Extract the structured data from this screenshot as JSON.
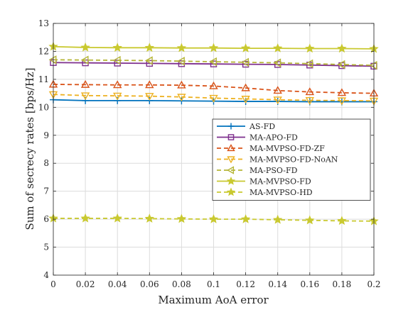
{
  "chart_data": {
    "type": "line",
    "title": "",
    "xlabel": "Maximum AoA error",
    "ylabel": "Sum of secrecy rates [bps/Hz]",
    "xlim": [
      0,
      0.2
    ],
    "ylim": [
      4,
      13
    ],
    "xticks": [
      0,
      0.02,
      0.04,
      0.06,
      0.08,
      0.1,
      0.12,
      0.14,
      0.16,
      0.18,
      0.2
    ],
    "yticks": [
      4,
      5,
      6,
      7,
      8,
      9,
      10,
      11,
      12,
      13
    ],
    "xtick_labels": [
      "0",
      "0.02",
      "0.04",
      "0.06",
      "0.08",
      "0.1",
      "0.12",
      "0.14",
      "0.16",
      "0.18",
      "0.2"
    ],
    "ytick_labels": [
      "4",
      "5",
      "6",
      "7",
      "8",
      "9",
      "10",
      "11",
      "12",
      "13"
    ],
    "grid": true,
    "legend_position": "center-right",
    "x": [
      0,
      0.02,
      0.04,
      0.06,
      0.08,
      0.1,
      0.12,
      0.14,
      0.16,
      0.18,
      0.2
    ],
    "series": [
      {
        "name": "AS-FD",
        "color": "#0072BD",
        "line": "solid",
        "marker": "plus",
        "values": [
          10.27,
          10.24,
          10.24,
          10.24,
          10.23,
          10.22,
          10.21,
          10.21,
          10.2,
          10.2,
          10.2
        ]
      },
      {
        "name": "MA-APO-FD",
        "color": "#7E2F8E",
        "line": "solid",
        "marker": "square",
        "values": [
          11.6,
          11.59,
          11.58,
          11.57,
          11.56,
          11.55,
          11.54,
          11.53,
          11.51,
          11.49,
          11.47
        ]
      },
      {
        "name": "MA-MVPSO-FD-ZF",
        "color": "#D95319",
        "line": "dashed",
        "marker": "triangle-up",
        "values": [
          10.82,
          10.81,
          10.8,
          10.8,
          10.79,
          10.76,
          10.69,
          10.6,
          10.55,
          10.52,
          10.5
        ]
      },
      {
        "name": "MA-MVPSO-FD-NoAN",
        "color": "#EDB120",
        "line": "dashed",
        "marker": "triangle-down",
        "values": [
          10.46,
          10.42,
          10.41,
          10.4,
          10.37,
          10.33,
          10.3,
          10.27,
          10.25,
          10.24,
          10.23
        ]
      },
      {
        "name": "MA-PSO-FD",
        "color": "#B5B536",
        "line": "dashed",
        "marker": "triangle-left",
        "values": [
          11.7,
          11.69,
          11.68,
          11.67,
          11.65,
          11.63,
          11.61,
          11.59,
          11.56,
          11.53,
          11.5
        ]
      },
      {
        "name": "MA-MVPSO-FD",
        "color": "#C9C930",
        "line": "solid",
        "marker": "star",
        "values": [
          12.17,
          12.14,
          12.13,
          12.13,
          12.12,
          12.12,
          12.11,
          12.11,
          12.1,
          12.1,
          12.09
        ]
      },
      {
        "name": "MA-MVPSO-HD",
        "color": "#C9C930",
        "line": "dashed",
        "marker": "star",
        "values": [
          6.03,
          6.03,
          6.03,
          6.02,
          6.01,
          6.0,
          6.0,
          5.98,
          5.96,
          5.94,
          5.93
        ]
      }
    ]
  }
}
